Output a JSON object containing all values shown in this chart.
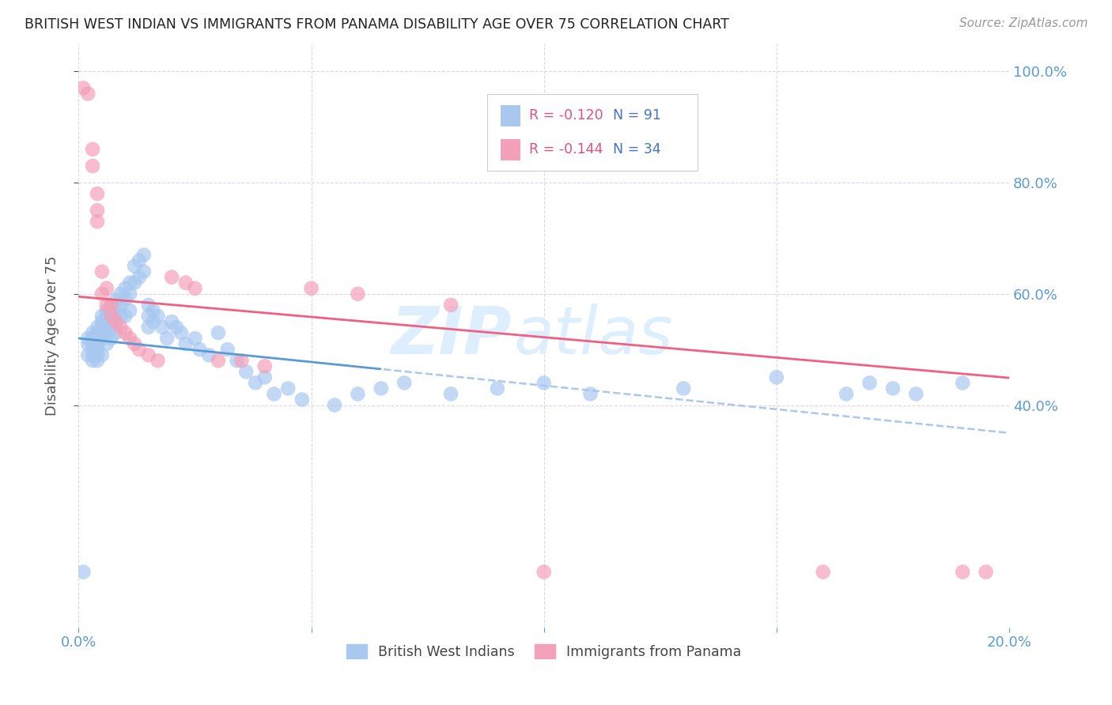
{
  "title": "BRITISH WEST INDIAN VS IMMIGRANTS FROM PANAMA DISABILITY AGE OVER 75 CORRELATION CHART",
  "source": "Source: ZipAtlas.com",
  "ylabel": "Disability Age Over 75",
  "xlim": [
    0.0,
    0.2
  ],
  "ylim": [
    0.0,
    1.05
  ],
  "legend_r1": "R = -0.120",
  "legend_n1": "N = 91",
  "legend_r2": "R = -0.144",
  "legend_n2": "N = 34",
  "color_blue": "#a8c8f0",
  "color_pink": "#f4a0b8",
  "color_trend_blue_solid": "#5b9bd5",
  "color_trend_blue_dashed": "#a8c8f0",
  "color_trend_pink": "#f06080",
  "watermark_zip": "ZIP",
  "watermark_atlas": "atlas",
  "watermark_color": "#ddeeff",
  "blue_scatter_x": [
    0.001,
    0.002,
    0.002,
    0.002,
    0.003,
    0.003,
    0.003,
    0.003,
    0.003,
    0.003,
    0.004,
    0.004,
    0.004,
    0.004,
    0.004,
    0.004,
    0.004,
    0.005,
    0.005,
    0.005,
    0.005,
    0.005,
    0.005,
    0.006,
    0.006,
    0.006,
    0.006,
    0.006,
    0.007,
    0.007,
    0.007,
    0.007,
    0.007,
    0.008,
    0.008,
    0.008,
    0.008,
    0.009,
    0.009,
    0.009,
    0.01,
    0.01,
    0.01,
    0.011,
    0.011,
    0.011,
    0.012,
    0.012,
    0.013,
    0.013,
    0.014,
    0.014,
    0.015,
    0.015,
    0.015,
    0.016,
    0.016,
    0.017,
    0.018,
    0.019,
    0.02,
    0.021,
    0.022,
    0.023,
    0.025,
    0.026,
    0.028,
    0.03,
    0.032,
    0.034,
    0.036,
    0.038,
    0.04,
    0.042,
    0.045,
    0.048,
    0.055,
    0.06,
    0.065,
    0.07,
    0.08,
    0.09,
    0.1,
    0.11,
    0.13,
    0.15,
    0.165,
    0.17,
    0.175,
    0.18,
    0.19
  ],
  "blue_scatter_y": [
    0.1,
    0.51,
    0.52,
    0.49,
    0.53,
    0.52,
    0.5,
    0.51,
    0.49,
    0.48,
    0.54,
    0.53,
    0.52,
    0.51,
    0.5,
    0.49,
    0.48,
    0.56,
    0.55,
    0.54,
    0.53,
    0.52,
    0.49,
    0.57,
    0.56,
    0.55,
    0.53,
    0.51,
    0.58,
    0.57,
    0.56,
    0.54,
    0.52,
    0.59,
    0.57,
    0.55,
    0.53,
    0.6,
    0.58,
    0.56,
    0.61,
    0.59,
    0.56,
    0.62,
    0.6,
    0.57,
    0.65,
    0.62,
    0.66,
    0.63,
    0.67,
    0.64,
    0.58,
    0.56,
    0.54,
    0.57,
    0.55,
    0.56,
    0.54,
    0.52,
    0.55,
    0.54,
    0.53,
    0.51,
    0.52,
    0.5,
    0.49,
    0.53,
    0.5,
    0.48,
    0.46,
    0.44,
    0.45,
    0.42,
    0.43,
    0.41,
    0.4,
    0.42,
    0.43,
    0.44,
    0.42,
    0.43,
    0.44,
    0.42,
    0.43,
    0.45,
    0.42,
    0.44,
    0.43,
    0.42,
    0.44
  ],
  "pink_scatter_x": [
    0.001,
    0.002,
    0.003,
    0.003,
    0.004,
    0.004,
    0.004,
    0.005,
    0.005,
    0.006,
    0.006,
    0.007,
    0.007,
    0.008,
    0.009,
    0.01,
    0.011,
    0.012,
    0.013,
    0.015,
    0.017,
    0.02,
    0.023,
    0.025,
    0.03,
    0.035,
    0.04,
    0.05,
    0.06,
    0.08,
    0.1,
    0.16,
    0.19,
    0.195
  ],
  "pink_scatter_y": [
    0.97,
    0.96,
    0.86,
    0.83,
    0.78,
    0.75,
    0.73,
    0.64,
    0.6,
    0.61,
    0.58,
    0.58,
    0.56,
    0.55,
    0.54,
    0.53,
    0.52,
    0.51,
    0.5,
    0.49,
    0.48,
    0.63,
    0.62,
    0.61,
    0.48,
    0.48,
    0.47,
    0.61,
    0.6,
    0.58,
    0.1,
    0.1,
    0.1,
    0.1
  ],
  "trend_blue_x0": 0.0,
  "trend_blue_y0": 0.52,
  "trend_blue_slope": -0.85,
  "trend_blue_solid_end": 0.065,
  "trend_pink_x0": 0.0,
  "trend_pink_y0": 0.595,
  "trend_pink_slope": -0.73
}
